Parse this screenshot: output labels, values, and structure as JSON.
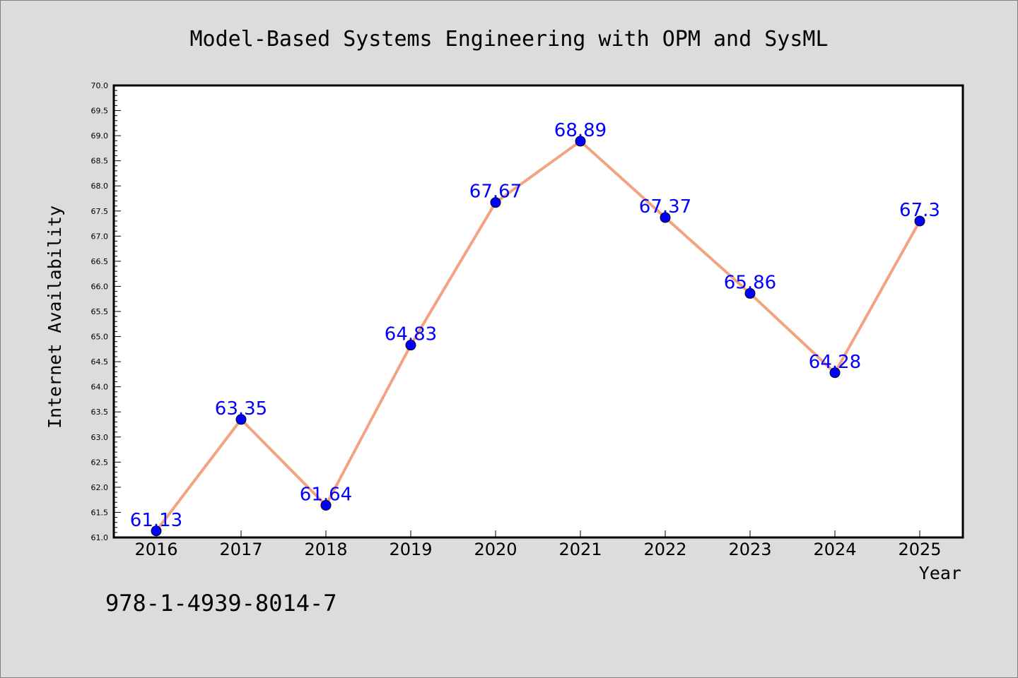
{
  "chart_data": {
    "type": "line",
    "title": "Model-Based Systems Engineering with OPM and SysML",
    "xlabel": "Year",
    "ylabel": "Internet Availability",
    "categories": [
      "2016",
      "2017",
      "2018",
      "2019",
      "2020",
      "2021",
      "2022",
      "2023",
      "2024",
      "2025"
    ],
    "values": [
      61.13,
      63.35,
      61.64,
      64.83,
      67.67,
      68.89,
      67.37,
      65.86,
      64.28,
      67.3
    ],
    "data_labels": [
      "61.13",
      "63.35",
      "61.64",
      "64.83",
      "67.67",
      "68.89",
      "67.37",
      "65.86",
      "64.28",
      "67.3"
    ],
    "ylim": [
      61.0,
      70.0
    ],
    "yticks": [
      "61.0",
      "61.5",
      "62.0",
      "62.5",
      "63.0",
      "63.5",
      "64.0",
      "64.5",
      "65.0",
      "65.5",
      "66.0",
      "66.5",
      "67.0",
      "67.5",
      "68.0",
      "68.5",
      "69.0",
      "69.5",
      "70.0"
    ],
    "grid": false,
    "line_color": "#f4a382",
    "marker_color": "#0000ff",
    "label_color": "#0000ff"
  },
  "footer": {
    "isbn": "978-1-4939-8014-7"
  }
}
